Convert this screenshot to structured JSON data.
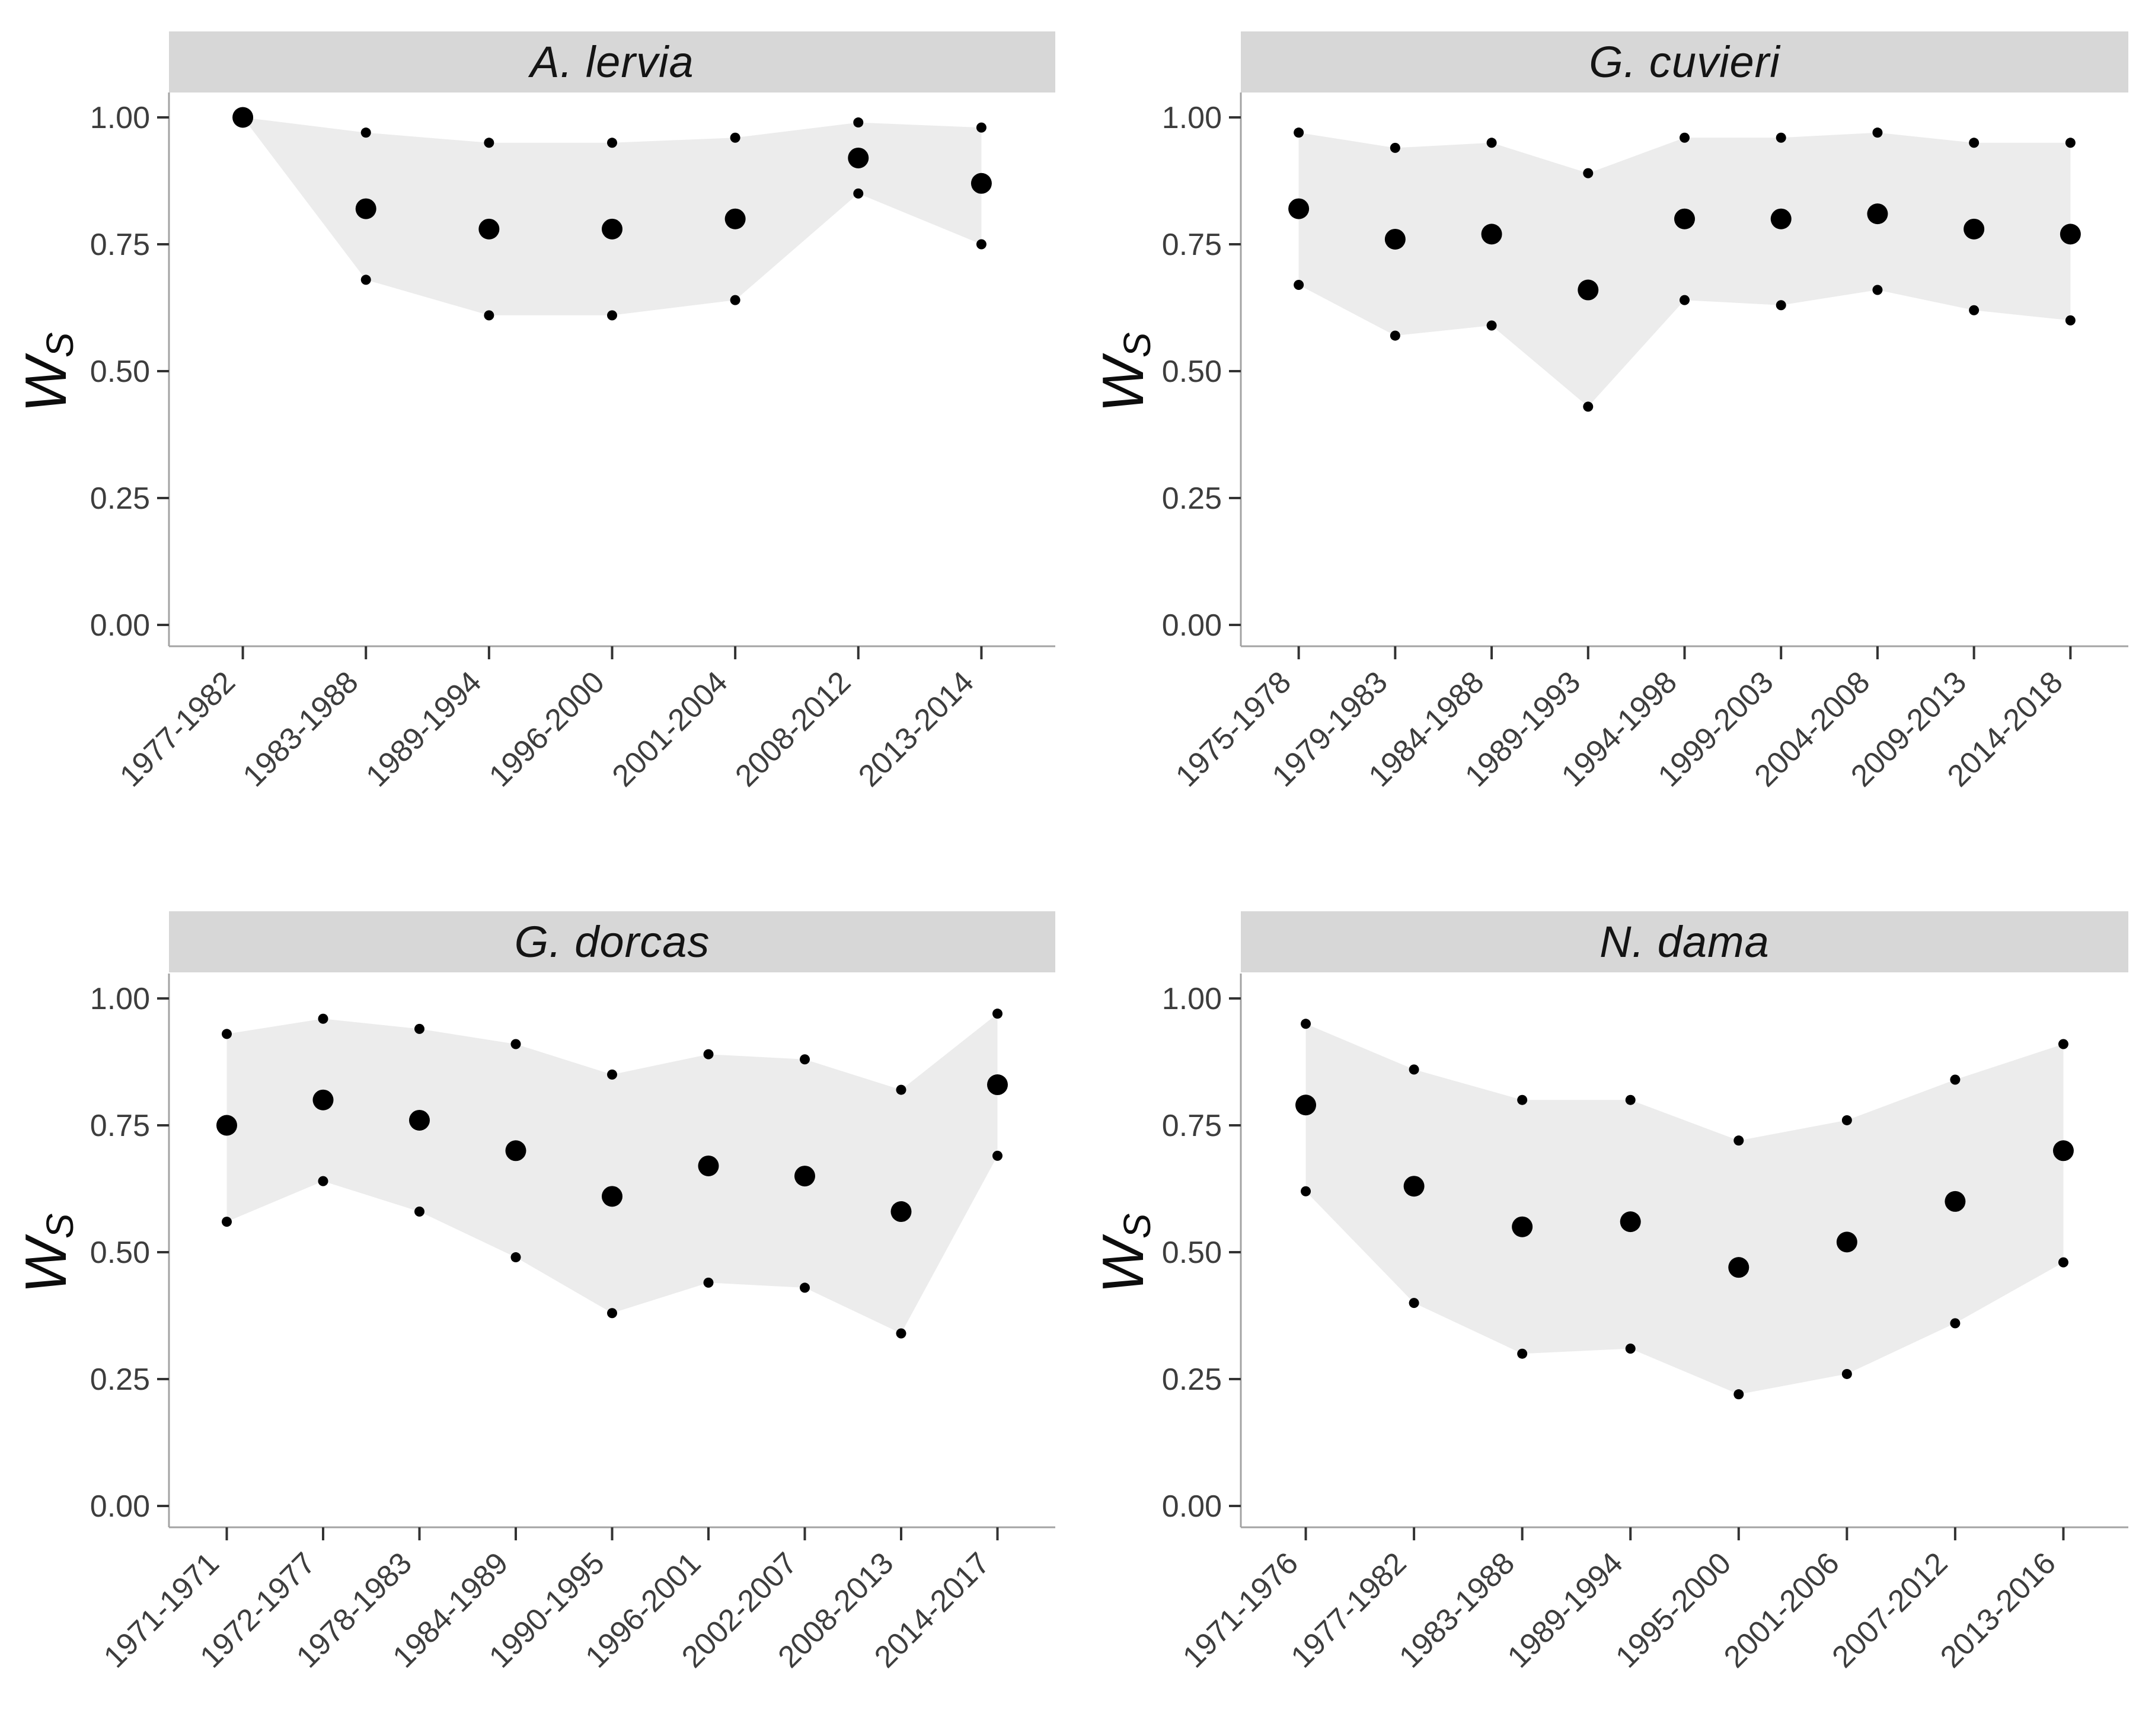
{
  "figure": {
    "type": "faceted scatter with confidence ribbon, 2x2 grid",
    "y_axis_title": {
      "base": "W",
      "subscript": "S"
    },
    "y_ticks": [
      "1.00",
      "0.75",
      "0.50",
      "0.25",
      "0.00"
    ],
    "colors": {
      "strip_bg": "#d7d7d7",
      "strip_text": "#141414",
      "ribbon": "#ececec",
      "point": "#000000",
      "axis_line": "#a3a3a3",
      "tick_mark": "#333333",
      "tick_label": "#3d3d3d",
      "background": "#ffffff"
    }
  },
  "chart_data": [
    {
      "type": "scatter",
      "title": "A. lervia",
      "xlabel": "",
      "ylabel": "Ws",
      "ylim": [
        0,
        1
      ],
      "grid": false,
      "legend": "none",
      "categories": [
        "1977-1982",
        "1983-1988",
        "1989-1994",
        "1996-2000",
        "2001-2004",
        "2008-2012",
        "2013-2014"
      ],
      "series": [
        {
          "name": "mean",
          "marker": "large-dot",
          "values": [
            1.0,
            0.82,
            0.78,
            0.78,
            0.8,
            0.92,
            0.87
          ]
        },
        {
          "name": "upper",
          "marker": "small-dot",
          "values": [
            1.0,
            0.97,
            0.95,
            0.95,
            0.96,
            0.99,
            0.98
          ]
        },
        {
          "name": "lower",
          "marker": "small-dot",
          "values": [
            1.0,
            0.68,
            0.61,
            0.61,
            0.64,
            0.85,
            0.75
          ]
        }
      ],
      "ribbon": {
        "between": [
          "lower",
          "upper"
        ]
      }
    },
    {
      "type": "scatter",
      "title": "G. cuvieri",
      "xlabel": "",
      "ylabel": "Ws",
      "ylim": [
        0,
        1
      ],
      "grid": false,
      "legend": "none",
      "categories": [
        "1975-1978",
        "1979-1983",
        "1984-1988",
        "1989-1993",
        "1994-1998",
        "1999-2003",
        "2004-2008",
        "2009-2013",
        "2014-2018"
      ],
      "series": [
        {
          "name": "mean",
          "marker": "large-dot",
          "values": [
            0.82,
            0.76,
            0.77,
            0.66,
            0.8,
            0.8,
            0.81,
            0.78,
            0.77
          ]
        },
        {
          "name": "upper",
          "marker": "small-dot",
          "values": [
            0.97,
            0.94,
            0.95,
            0.89,
            0.96,
            0.96,
            0.97,
            0.95,
            0.95
          ]
        },
        {
          "name": "lower",
          "marker": "small-dot",
          "values": [
            0.67,
            0.57,
            0.59,
            0.43,
            0.64,
            0.63,
            0.66,
            0.62,
            0.6
          ]
        }
      ],
      "ribbon": {
        "between": [
          "lower",
          "upper"
        ]
      }
    },
    {
      "type": "scatter",
      "title": "G. dorcas",
      "xlabel": "",
      "ylabel": "Ws",
      "ylim": [
        0,
        1
      ],
      "grid": false,
      "legend": "none",
      "categories": [
        "1971-1971",
        "1972-1977",
        "1978-1983",
        "1984-1989",
        "1990-1995",
        "1996-2001",
        "2002-2007",
        "2008-2013",
        "2014-2017"
      ],
      "series": [
        {
          "name": "mean",
          "marker": "large-dot",
          "values": [
            0.75,
            0.8,
            0.76,
            0.7,
            0.61,
            0.67,
            0.65,
            0.58,
            0.83
          ]
        },
        {
          "name": "upper",
          "marker": "small-dot",
          "values": [
            0.93,
            0.96,
            0.94,
            0.91,
            0.85,
            0.89,
            0.88,
            0.82,
            0.97
          ]
        },
        {
          "name": "lower",
          "marker": "small-dot",
          "values": [
            0.56,
            0.64,
            0.58,
            0.49,
            0.38,
            0.44,
            0.43,
            0.34,
            0.69
          ]
        }
      ],
      "ribbon": {
        "between": [
          "lower",
          "upper"
        ]
      }
    },
    {
      "type": "scatter",
      "title": "N. dama",
      "xlabel": "",
      "ylabel": "Ws",
      "ylim": [
        0,
        1
      ],
      "grid": false,
      "legend": "none",
      "categories": [
        "1971-1976",
        "1977-1982",
        "1983-1988",
        "1989-1994",
        "1995-2000",
        "2001-2006",
        "2007-2012",
        "2013-2016"
      ],
      "series": [
        {
          "name": "mean",
          "marker": "large-dot",
          "values": [
            0.79,
            0.63,
            0.55,
            0.56,
            0.47,
            0.52,
            0.6,
            0.7
          ]
        },
        {
          "name": "upper",
          "marker": "small-dot",
          "values": [
            0.95,
            0.86,
            0.8,
            0.8,
            0.72,
            0.76,
            0.84,
            0.91
          ]
        },
        {
          "name": "lower",
          "marker": "small-dot",
          "values": [
            0.62,
            0.4,
            0.3,
            0.31,
            0.22,
            0.26,
            0.36,
            0.48
          ]
        }
      ],
      "ribbon": {
        "between": [
          "lower",
          "upper"
        ]
      }
    }
  ]
}
